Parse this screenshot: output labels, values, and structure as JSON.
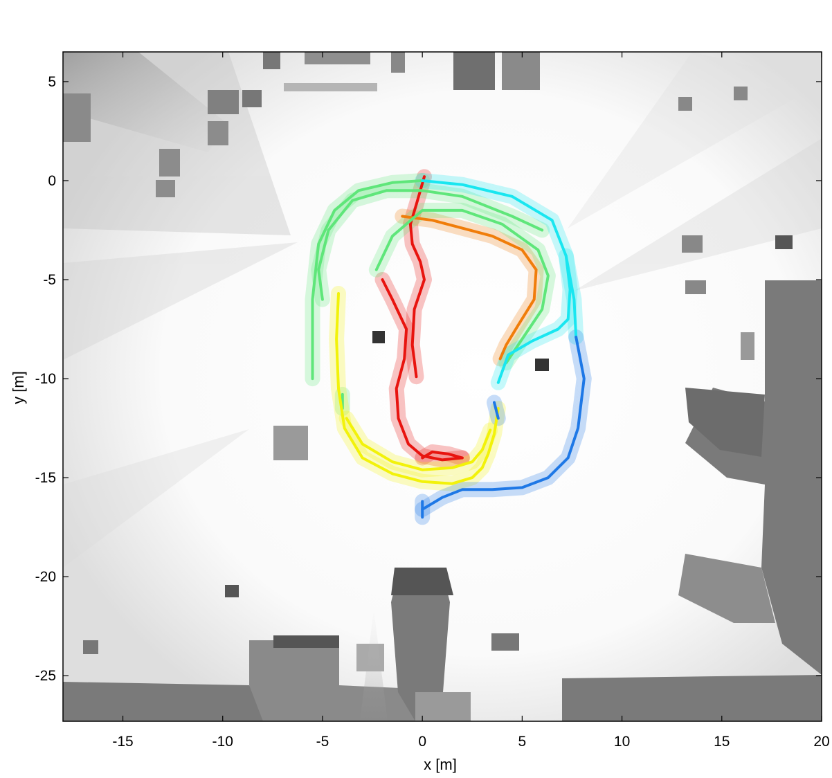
{
  "chart_data": {
    "type": "line",
    "title": "",
    "xlabel": "x [m]",
    "ylabel": "y [m]",
    "xlim": [
      -18,
      20
    ],
    "ylim": [
      -27.3,
      6.5
    ],
    "xticks": [
      -15,
      -10,
      -5,
      0,
      5,
      10,
      15,
      20
    ],
    "yticks": [
      5,
      0,
      -5,
      -10,
      -15,
      -20,
      -25
    ],
    "xtick_labels": [
      "-15",
      "-10",
      "-5",
      "0",
      "5",
      "10",
      "15",
      "20"
    ],
    "ytick_labels": [
      "5",
      "0",
      "-5",
      "-10",
      "-15",
      "-20",
      "-25"
    ],
    "grid": false,
    "legend": "none",
    "background": "occupancy grid map (grayscale)",
    "colors": {
      "red": "#e8140f",
      "orange": "#f07d0a",
      "yellow": "#f2f20a",
      "green": "#5fe67a",
      "cyan": "#19e6f0",
      "blue": "#1e78e6",
      "obstacle": "#777777",
      "frame": "#000000"
    },
    "series": [
      {
        "color": "#e8140f",
        "x": [
          -2.0,
          -1.5,
          -0.8,
          -0.9,
          -1.3,
          -1.2,
          -0.7,
          0.0,
          1.0,
          2.0
        ],
        "y": [
          -5.0,
          -6.0,
          -7.5,
          -9.0,
          -10.5,
          -12.0,
          -13.3,
          -13.9,
          -14.1,
          -14.0
        ]
      },
      {
        "color": "#e8140f",
        "x": [
          -0.3,
          -0.5,
          -0.4,
          0.1,
          -0.1,
          -0.5,
          -0.6,
          -0.3,
          0.1
        ],
        "y": [
          -9.9,
          -8.3,
          -6.5,
          -5.0,
          -4.1,
          -3.2,
          -2.2,
          -1.2,
          0.2
        ]
      },
      {
        "color": "#e8140f",
        "x": [
          0.0,
          0.5,
          1.3,
          2.0
        ],
        "y": [
          -14.0,
          -13.7,
          -13.8,
          -14.0
        ]
      },
      {
        "color": "#f07d0a",
        "x": [
          -1.0,
          0.5,
          2.0,
          3.5,
          5.0,
          5.7,
          5.6,
          4.8,
          4.2,
          3.9
        ],
        "y": [
          -1.8,
          -2.0,
          -2.4,
          -2.8,
          -3.5,
          -4.5,
          -6.0,
          -7.3,
          -8.3,
          -9.0
        ]
      },
      {
        "color": "#5fe67a",
        "x": [
          -2.3,
          -1.5,
          0.0,
          2.0,
          4.0,
          5.8,
          6.3,
          6.0,
          5.0,
          4.2
        ],
        "y": [
          -4.5,
          -2.8,
          -1.5,
          -1.5,
          -2.2,
          -3.5,
          -4.8,
          -6.5,
          -8.0,
          -9.2
        ]
      },
      {
        "color": "#5fe67a",
        "x": [
          -5.0,
          -5.2,
          -4.7,
          -3.5,
          -1.8,
          0.0,
          2.0,
          4.5,
          6.0
        ],
        "y": [
          -6.0,
          -4.5,
          -2.5,
          -1.0,
          -0.5,
          -0.5,
          -0.8,
          -1.8,
          -2.5
        ]
      },
      {
        "color": "#5fe67a",
        "x": [
          -5.5,
          -5.5,
          -5.2,
          -4.4,
          -3.2,
          -1.5,
          0.0
        ],
        "y": [
          -10.0,
          -6.0,
          -3.2,
          -1.5,
          -0.5,
          -0.1,
          0.0
        ]
      },
      {
        "color": "#5fe67a",
        "x": [
          -4.0,
          -4.0
        ],
        "y": [
          -10.8,
          -11.5
        ]
      },
      {
        "color": "#f2f20a",
        "x": [
          -4.2,
          -4.3,
          -4.2,
          -3.9,
          -3.0,
          -1.5,
          0.0,
          1.5,
          2.5,
          3.0,
          3.3,
          3.6,
          3.8
        ],
        "y": [
          -5.7,
          -8.0,
          -10.5,
          -12.5,
          -14.0,
          -14.8,
          -15.2,
          -15.3,
          -15.0,
          -14.5,
          -13.8,
          -12.8,
          -11.5
        ]
      },
      {
        "color": "#f2f20a",
        "x": [
          -3.8,
          -3.0,
          -1.5,
          0.0,
          1.5,
          2.5,
          3.0,
          3.4
        ],
        "y": [
          -12.0,
          -13.3,
          -14.2,
          -14.6,
          -14.5,
          -14.2,
          -13.6,
          -12.6
        ]
      },
      {
        "color": "#19e6f0",
        "x": [
          0.0,
          2.0,
          4.5,
          6.5,
          7.2,
          7.4,
          7.3,
          6.8,
          5.5,
          4.3,
          3.8
        ],
        "y": [
          0.0,
          -0.2,
          -0.8,
          -2.0,
          -3.8,
          -5.5,
          -7.0,
          -7.5,
          -8.1,
          -8.8,
          -10.2
        ]
      },
      {
        "color": "#19e6f0",
        "x": [
          7.2,
          7.6,
          7.7
        ],
        "y": [
          -3.8,
          -6.0,
          -7.9
        ]
      },
      {
        "color": "#1e78e6",
        "x": [
          7.7,
          8.1,
          7.8,
          7.3,
          6.3,
          5.0,
          3.5,
          2.0,
          1.0,
          0.5,
          0.0
        ],
        "y": [
          -7.9,
          -10.0,
          -12.5,
          -14.0,
          -15.0,
          -15.5,
          -15.6,
          -15.6,
          -16.0,
          -16.3,
          -16.6
        ]
      },
      {
        "color": "#1e78e6",
        "x": [
          0.0,
          0.0
        ],
        "y": [
          -16.2,
          -17.0
        ]
      },
      {
        "color": "#1e78e6",
        "x": [
          3.6,
          3.7,
          3.8
        ],
        "y": [
          -11.2,
          -11.6,
          -12.0
        ]
      }
    ]
  }
}
